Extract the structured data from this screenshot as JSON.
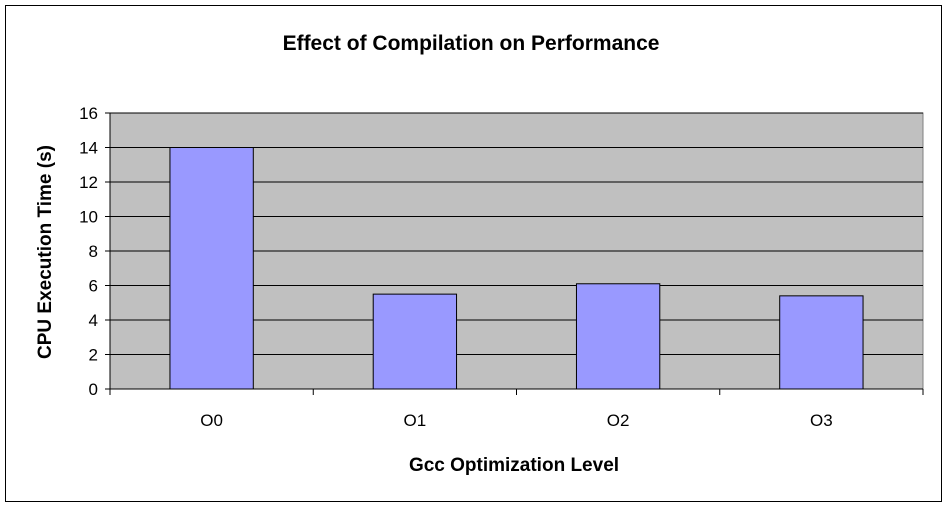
{
  "chart_data": {
    "type": "bar",
    "title": "Effect of Compilation on Performance",
    "xlabel": "Gcc Optimization Level",
    "ylabel": "CPU Execution Time (s)",
    "categories": [
      "O0",
      "O1",
      "O2",
      "O3"
    ],
    "values": [
      14.0,
      5.5,
      6.1,
      5.4
    ],
    "ylim": [
      0,
      16
    ],
    "yticks": [
      0,
      2,
      4,
      6,
      8,
      10,
      12,
      14,
      16
    ],
    "grid": true,
    "legend": "none"
  },
  "colors": {
    "bar_fill": "#9999ff",
    "plot_background": "#c0c0c0",
    "gridline": "#000000"
  }
}
